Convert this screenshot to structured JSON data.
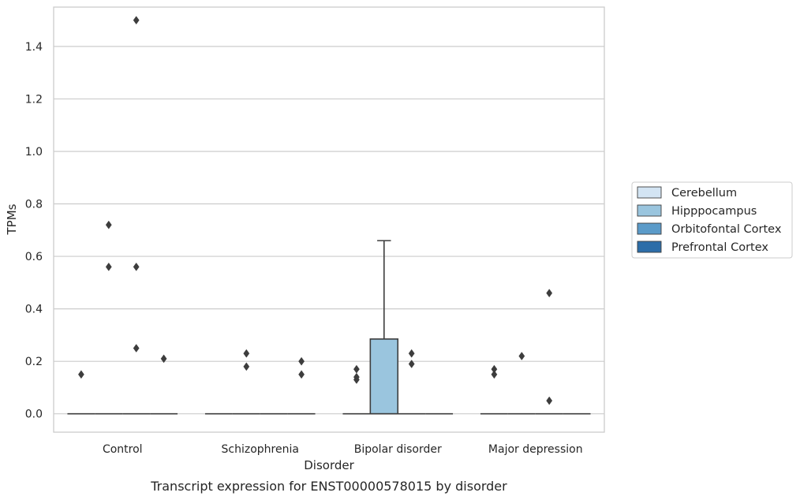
{
  "chart_data": {
    "type": "box",
    "title": "",
    "caption": "Transcript expression for ENST00000578015 by disorder",
    "xlabel": "Disorder",
    "ylabel": "TPMs",
    "ylim": [
      -0.07,
      1.55
    ],
    "yticks": [
      0.0,
      0.2,
      0.4,
      0.6,
      0.8,
      1.0,
      1.2,
      1.4
    ],
    "ytick_labels": [
      "0.0",
      "0.2",
      "0.4",
      "0.6",
      "0.8",
      "1.0",
      "1.2",
      "1.4"
    ],
    "grid": true,
    "legend_position": "right",
    "categories": [
      "Control",
      "Schizophrenia",
      "Bipolar disorder",
      "Major depression"
    ],
    "series": [
      {
        "name": "Cerebellum",
        "color": "#d3e4f3",
        "boxes": [
          {
            "q1": 0,
            "median": 0,
            "q3": 0,
            "whisker_low": 0,
            "whisker_high": 0,
            "outliers": [
              0.15
            ]
          },
          {
            "q1": 0,
            "median": 0,
            "q3": 0,
            "whisker_low": 0,
            "whisker_high": 0,
            "outliers": []
          },
          {
            "q1": 0,
            "median": 0,
            "q3": 0,
            "whisker_low": 0,
            "whisker_high": 0,
            "outliers": [
              0.13,
              0.14,
              0.17
            ]
          },
          {
            "q1": 0,
            "median": 0,
            "q3": 0,
            "whisker_low": 0,
            "whisker_high": 0,
            "outliers": [
              0.15,
              0.17
            ]
          }
        ]
      },
      {
        "name": "Hipppocampus",
        "color": "#9ac5de",
        "boxes": [
          {
            "q1": 0,
            "median": 0,
            "q3": 0,
            "whisker_low": 0,
            "whisker_high": 0,
            "outliers": [
              0.56,
              0.72
            ]
          },
          {
            "q1": 0,
            "median": 0,
            "q3": 0,
            "whisker_low": 0,
            "whisker_high": 0,
            "outliers": [
              0.18,
              0.23
            ]
          },
          {
            "q1": 0,
            "median": 0,
            "q3": 0.285,
            "whisker_low": 0,
            "whisker_high": 0.66,
            "outliers": []
          },
          {
            "q1": 0,
            "median": 0,
            "q3": 0,
            "whisker_low": 0,
            "whisker_high": 0,
            "outliers": [
              0.22
            ]
          }
        ]
      },
      {
        "name": "Orbitofontal Cortex",
        "color": "#5b9bc9",
        "boxes": [
          {
            "q1": 0,
            "median": 0,
            "q3": 0,
            "whisker_low": 0,
            "whisker_high": 0,
            "outliers": [
              0.25,
              0.56,
              1.5
            ]
          },
          {
            "q1": 0,
            "median": 0,
            "q3": 0,
            "whisker_low": 0,
            "whisker_high": 0,
            "outliers": []
          },
          {
            "q1": 0,
            "median": 0,
            "q3": 0,
            "whisker_low": 0,
            "whisker_high": 0,
            "outliers": [
              0.19,
              0.23
            ]
          },
          {
            "q1": 0,
            "median": 0,
            "q3": 0,
            "whisker_low": 0,
            "whisker_high": 0,
            "outliers": [
              0.05,
              0.46
            ]
          }
        ]
      },
      {
        "name": "Prefrontal Cortex",
        "color": "#2c6da8",
        "boxes": [
          {
            "q1": 0,
            "median": 0,
            "q3": 0,
            "whisker_low": 0,
            "whisker_high": 0,
            "outliers": [
              0.21
            ]
          },
          {
            "q1": 0,
            "median": 0,
            "q3": 0,
            "whisker_low": 0,
            "whisker_high": 0,
            "outliers": [
              0.15,
              0.2
            ]
          },
          {
            "q1": 0,
            "median": 0,
            "q3": 0,
            "whisker_low": 0,
            "whisker_high": 0,
            "outliers": []
          },
          {
            "q1": 0,
            "median": 0,
            "q3": 0,
            "whisker_low": 0,
            "whisker_high": 0,
            "outliers": []
          }
        ]
      }
    ]
  }
}
